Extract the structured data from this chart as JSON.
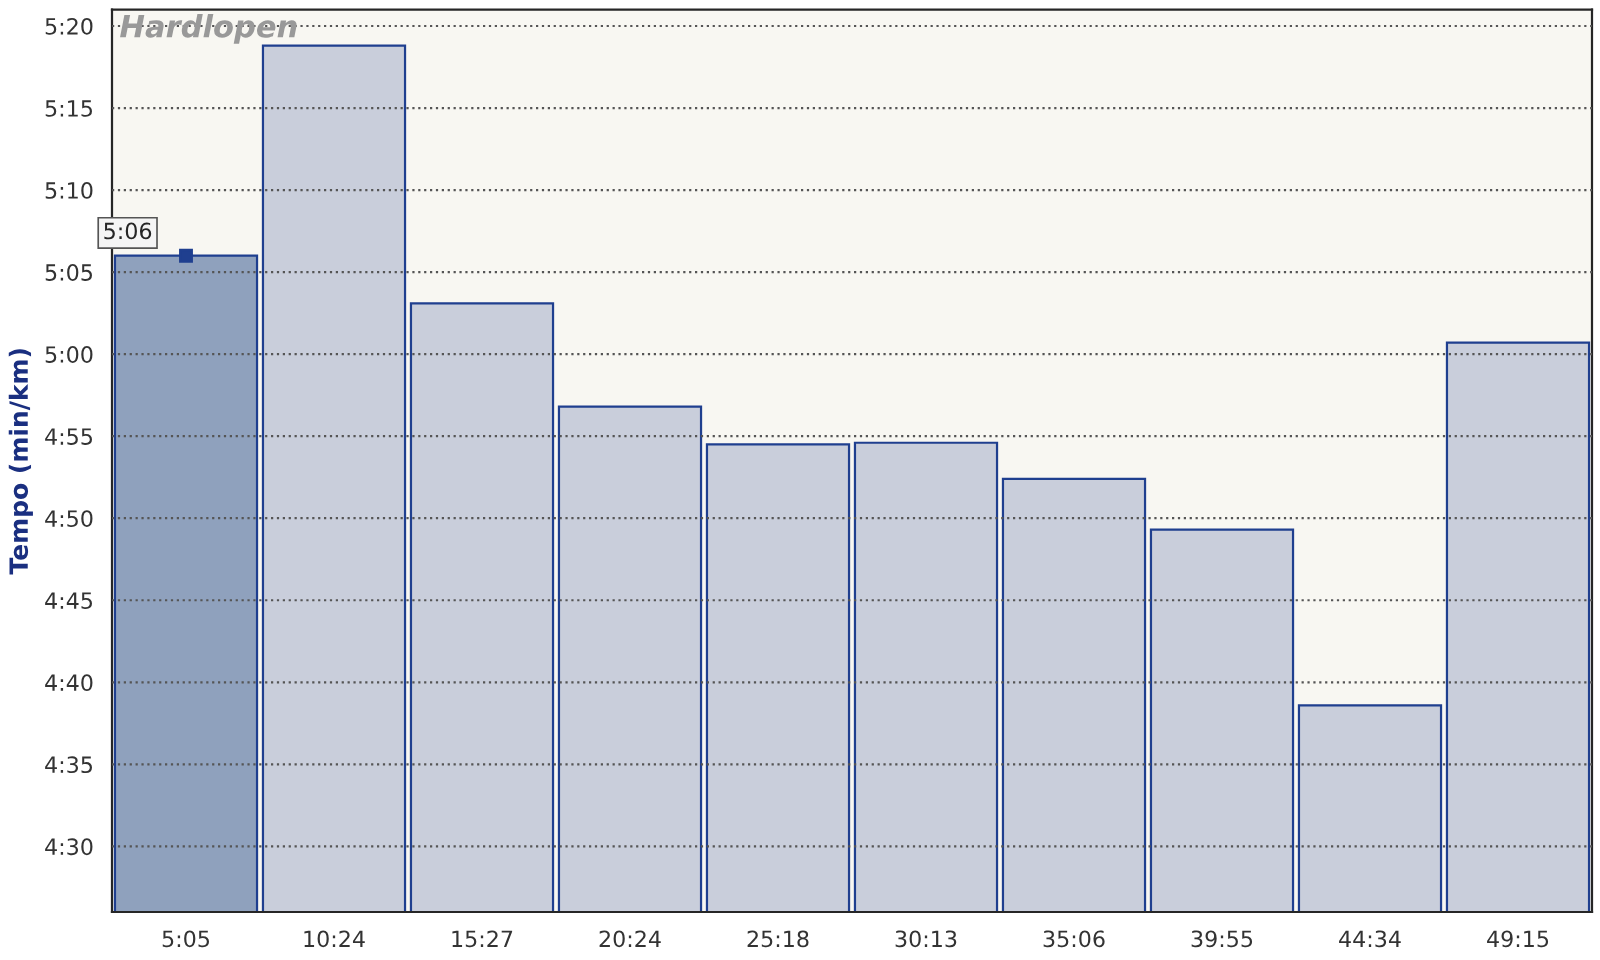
{
  "chart_data": {
    "type": "bar",
    "title": "Hardlopen",
    "ylabel": "Tempo (min/km)",
    "categories": [
      "5:05",
      "10:24",
      "15:27",
      "20:24",
      "25:18",
      "30:13",
      "35:06",
      "39:55",
      "44:34",
      "49:15"
    ],
    "values": [
      306,
      318.8,
      303.1,
      296.8,
      294.5,
      294.6,
      292.4,
      289.3,
      278.6,
      300.7
    ],
    "colors": [
      "#8fa1bd",
      "#c9cedb",
      "#c9cedb",
      "#c9cedb",
      "#c9cedb",
      "#c9cedb",
      "#c9cedb",
      "#c9cedb",
      "#c9cedb",
      "#c9cedb"
    ],
    "ylim": [
      266,
      321
    ],
    "yticks": [
      {
        "value": 270,
        "label": "4:30"
      },
      {
        "value": 275,
        "label": "4:35"
      },
      {
        "value": 280,
        "label": "4:40"
      },
      {
        "value": 285,
        "label": "4:45"
      },
      {
        "value": 290,
        "label": "4:50"
      },
      {
        "value": 295,
        "label": "4:55"
      },
      {
        "value": 300,
        "label": "5:00"
      },
      {
        "value": 305,
        "label": "5:05"
      },
      {
        "value": 310,
        "label": "5:10"
      },
      {
        "value": 315,
        "label": "5:15"
      },
      {
        "value": 320,
        "label": "5:20"
      }
    ],
    "annotations": [
      {
        "text": "5:06",
        "x": "5:05",
        "y": 306
      }
    ],
    "grid": "y"
  }
}
